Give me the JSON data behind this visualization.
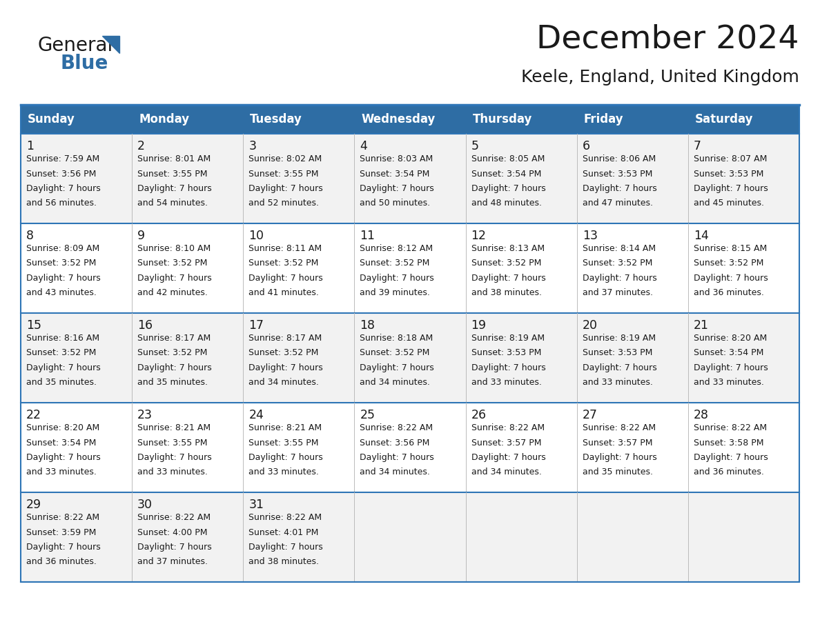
{
  "title": "December 2024",
  "subtitle": "Keele, England, United Kingdom",
  "header_color": "#2E6DA4",
  "header_text_color": "#FFFFFF",
  "border_color": "#2E75B6",
  "row_colors": [
    "#F2F2F2",
    "#FFFFFF"
  ],
  "days_of_week": [
    "Sunday",
    "Monday",
    "Tuesday",
    "Wednesday",
    "Thursday",
    "Friday",
    "Saturday"
  ],
  "weeks": [
    [
      {
        "day": "1",
        "sunrise": "7:59 AM",
        "sunset": "3:56 PM",
        "daylight1": "Daylight: 7 hours",
        "daylight2": "and 56 minutes."
      },
      {
        "day": "2",
        "sunrise": "8:01 AM",
        "sunset": "3:55 PM",
        "daylight1": "Daylight: 7 hours",
        "daylight2": "and 54 minutes."
      },
      {
        "day": "3",
        "sunrise": "8:02 AM",
        "sunset": "3:55 PM",
        "daylight1": "Daylight: 7 hours",
        "daylight2": "and 52 minutes."
      },
      {
        "day": "4",
        "sunrise": "8:03 AM",
        "sunset": "3:54 PM",
        "daylight1": "Daylight: 7 hours",
        "daylight2": "and 50 minutes."
      },
      {
        "day": "5",
        "sunrise": "8:05 AM",
        "sunset": "3:54 PM",
        "daylight1": "Daylight: 7 hours",
        "daylight2": "and 48 minutes."
      },
      {
        "day": "6",
        "sunrise": "8:06 AM",
        "sunset": "3:53 PM",
        "daylight1": "Daylight: 7 hours",
        "daylight2": "and 47 minutes."
      },
      {
        "day": "7",
        "sunrise": "8:07 AM",
        "sunset": "3:53 PM",
        "daylight1": "Daylight: 7 hours",
        "daylight2": "and 45 minutes."
      }
    ],
    [
      {
        "day": "8",
        "sunrise": "8:09 AM",
        "sunset": "3:52 PM",
        "daylight1": "Daylight: 7 hours",
        "daylight2": "and 43 minutes."
      },
      {
        "day": "9",
        "sunrise": "8:10 AM",
        "sunset": "3:52 PM",
        "daylight1": "Daylight: 7 hours",
        "daylight2": "and 42 minutes."
      },
      {
        "day": "10",
        "sunrise": "8:11 AM",
        "sunset": "3:52 PM",
        "daylight1": "Daylight: 7 hours",
        "daylight2": "and 41 minutes."
      },
      {
        "day": "11",
        "sunrise": "8:12 AM",
        "sunset": "3:52 PM",
        "daylight1": "Daylight: 7 hours",
        "daylight2": "and 39 minutes."
      },
      {
        "day": "12",
        "sunrise": "8:13 AM",
        "sunset": "3:52 PM",
        "daylight1": "Daylight: 7 hours",
        "daylight2": "and 38 minutes."
      },
      {
        "day": "13",
        "sunrise": "8:14 AM",
        "sunset": "3:52 PM",
        "daylight1": "Daylight: 7 hours",
        "daylight2": "and 37 minutes."
      },
      {
        "day": "14",
        "sunrise": "8:15 AM",
        "sunset": "3:52 PM",
        "daylight1": "Daylight: 7 hours",
        "daylight2": "and 36 minutes."
      }
    ],
    [
      {
        "day": "15",
        "sunrise": "8:16 AM",
        "sunset": "3:52 PM",
        "daylight1": "Daylight: 7 hours",
        "daylight2": "and 35 minutes."
      },
      {
        "day": "16",
        "sunrise": "8:17 AM",
        "sunset": "3:52 PM",
        "daylight1": "Daylight: 7 hours",
        "daylight2": "and 35 minutes."
      },
      {
        "day": "17",
        "sunrise": "8:17 AM",
        "sunset": "3:52 PM",
        "daylight1": "Daylight: 7 hours",
        "daylight2": "and 34 minutes."
      },
      {
        "day": "18",
        "sunrise": "8:18 AM",
        "sunset": "3:52 PM",
        "daylight1": "Daylight: 7 hours",
        "daylight2": "and 34 minutes."
      },
      {
        "day": "19",
        "sunrise": "8:19 AM",
        "sunset": "3:53 PM",
        "daylight1": "Daylight: 7 hours",
        "daylight2": "and 33 minutes."
      },
      {
        "day": "20",
        "sunrise": "8:19 AM",
        "sunset": "3:53 PM",
        "daylight1": "Daylight: 7 hours",
        "daylight2": "and 33 minutes."
      },
      {
        "day": "21",
        "sunrise": "8:20 AM",
        "sunset": "3:54 PM",
        "daylight1": "Daylight: 7 hours",
        "daylight2": "and 33 minutes."
      }
    ],
    [
      {
        "day": "22",
        "sunrise": "8:20 AM",
        "sunset": "3:54 PM",
        "daylight1": "Daylight: 7 hours",
        "daylight2": "and 33 minutes."
      },
      {
        "day": "23",
        "sunrise": "8:21 AM",
        "sunset": "3:55 PM",
        "daylight1": "Daylight: 7 hours",
        "daylight2": "and 33 minutes."
      },
      {
        "day": "24",
        "sunrise": "8:21 AM",
        "sunset": "3:55 PM",
        "daylight1": "Daylight: 7 hours",
        "daylight2": "and 33 minutes."
      },
      {
        "day": "25",
        "sunrise": "8:22 AM",
        "sunset": "3:56 PM",
        "daylight1": "Daylight: 7 hours",
        "daylight2": "and 34 minutes."
      },
      {
        "day": "26",
        "sunrise": "8:22 AM",
        "sunset": "3:57 PM",
        "daylight1": "Daylight: 7 hours",
        "daylight2": "and 34 minutes."
      },
      {
        "day": "27",
        "sunrise": "8:22 AM",
        "sunset": "3:57 PM",
        "daylight1": "Daylight: 7 hours",
        "daylight2": "and 35 minutes."
      },
      {
        "day": "28",
        "sunrise": "8:22 AM",
        "sunset": "3:58 PM",
        "daylight1": "Daylight: 7 hours",
        "daylight2": "and 36 minutes."
      }
    ],
    [
      {
        "day": "29",
        "sunrise": "8:22 AM",
        "sunset": "3:59 PM",
        "daylight1": "Daylight: 7 hours",
        "daylight2": "and 36 minutes."
      },
      {
        "day": "30",
        "sunrise": "8:22 AM",
        "sunset": "4:00 PM",
        "daylight1": "Daylight: 7 hours",
        "daylight2": "and 37 minutes."
      },
      {
        "day": "31",
        "sunrise": "8:22 AM",
        "sunset": "4:01 PM",
        "daylight1": "Daylight: 7 hours",
        "daylight2": "and 38 minutes."
      },
      null,
      null,
      null,
      null
    ]
  ]
}
